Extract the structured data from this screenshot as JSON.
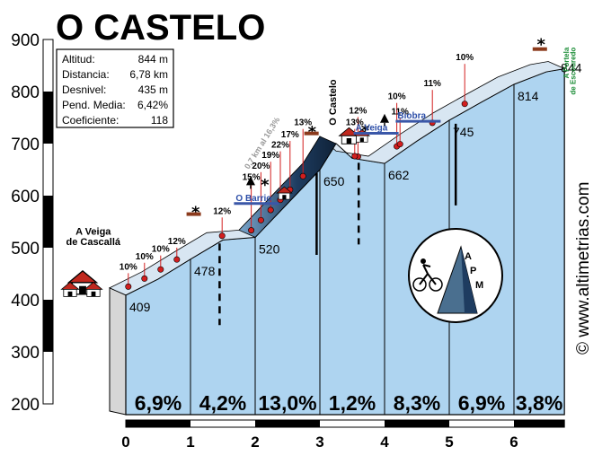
{
  "chart_data": {
    "type": "area",
    "title": "O CASTELO",
    "y_ticks": [
      200,
      300,
      400,
      500,
      600,
      700,
      800,
      900
    ],
    "x_ticks": [
      0,
      1,
      2,
      3,
      4,
      5,
      6
    ],
    "ylim": [
      200,
      900
    ],
    "xlim": [
      0,
      6.78
    ],
    "profile": [
      {
        "x": 0,
        "y": 409
      },
      {
        "x": 0.5,
        "y": 440
      },
      {
        "x": 1.0,
        "y": 478
      },
      {
        "x": 1.5,
        "y": 515
      },
      {
        "x": 2.0,
        "y": 520
      },
      {
        "x": 2.5,
        "y": 585
      },
      {
        "x": 3.0,
        "y": 650
      },
      {
        "x": 3.25,
        "y": 700
      },
      {
        "x": 3.5,
        "y": 672
      },
      {
        "x": 4.0,
        "y": 662
      },
      {
        "x": 4.5,
        "y": 705
      },
      {
        "x": 5.0,
        "y": 745
      },
      {
        "x": 5.5,
        "y": 780
      },
      {
        "x": 6.0,
        "y": 814
      },
      {
        "x": 6.5,
        "y": 838
      },
      {
        "x": 6.78,
        "y": 844
      }
    ],
    "elevation_labels": [
      {
        "x": 0,
        "y": 409,
        "text": "409"
      },
      {
        "x": 1,
        "y": 478,
        "text": "478"
      },
      {
        "x": 2,
        "y": 520,
        "text": "520"
      },
      {
        "x": 3,
        "y": 650,
        "text": "650"
      },
      {
        "x": 4,
        "y": 662,
        "text": "662"
      },
      {
        "x": 5,
        "y": 745,
        "text": "745"
      },
      {
        "x": 6,
        "y": 814,
        "text": "814"
      },
      {
        "x": 6.78,
        "y": 844,
        "text": "844"
      }
    ],
    "segment_gradients": [
      "6,9%",
      "4,2%",
      "13,0%",
      "1,2%",
      "8,3%",
      "6,9%",
      "3,8%"
    ],
    "ramp_labels": [
      {
        "x": 0.15,
        "y": 458,
        "text": "10%"
      },
      {
        "x": 0.4,
        "y": 478,
        "text": "10%"
      },
      {
        "x": 0.65,
        "y": 492,
        "text": "10%"
      },
      {
        "x": 0.9,
        "y": 507,
        "text": "12%"
      },
      {
        "x": 1.6,
        "y": 565,
        "text": "12%"
      },
      {
        "x": 2.05,
        "y": 630,
        "text": "15%"
      },
      {
        "x": 2.2,
        "y": 652,
        "text": "20%"
      },
      {
        "x": 2.35,
        "y": 672,
        "text": "19%"
      },
      {
        "x": 2.5,
        "y": 692,
        "text": "22%"
      },
      {
        "x": 2.65,
        "y": 712,
        "text": "17%"
      },
      {
        "x": 2.85,
        "y": 735,
        "text": "13%"
      },
      {
        "x": 3.7,
        "y": 758,
        "text": "12%"
      },
      {
        "x": 3.65,
        "y": 735,
        "text": "13%"
      },
      {
        "x": 4.3,
        "y": 785,
        "text": "10%"
      },
      {
        "x": 4.35,
        "y": 756,
        "text": "11%"
      },
      {
        "x": 4.85,
        "y": 810,
        "text": "11%"
      },
      {
        "x": 5.35,
        "y": 860,
        "text": "10%"
      }
    ],
    "places": [
      {
        "text": "A Veiga",
        "x": 0.08,
        "y": 525
      },
      {
        "text": "de Cascallá",
        "x": 0.08,
        "y": 505
      }
    ],
    "road_labels": [
      {
        "text": "O Barrio",
        "x": 1.7,
        "y": 590
      },
      {
        "text": "A Veiga",
        "x": 3.55,
        "y": 725
      },
      {
        "text": "Biobra",
        "x": 4.2,
        "y": 748
      }
    ],
    "vertical_labels": [
      {
        "text": "O Castelo",
        "x": 3.25,
        "y": 735
      },
      {
        "text": "0,7 km al 16,3%",
        "x": 1.9,
        "y": 650
      },
      {
        "text": "A Portela",
        "x": 6.85,
        "y": 885
      },
      {
        "text": "de Escouredo",
        "x": 6.95,
        "y": 885
      }
    ],
    "stats": [
      {
        "label": "Altitud:",
        "value": "844 m"
      },
      {
        "label": "Distancia:",
        "value": "6,78 km"
      },
      {
        "label": "Desnivel:",
        "value": "435 m"
      },
      {
        "label": "Pend. Media:",
        "value": "6,42%"
      },
      {
        "label": "Coeficiente:",
        "value": "118"
      }
    ],
    "logo": "APM",
    "copyright": "© www.altimetrias.com",
    "colors": {
      "fill": "#aed4f0",
      "steep": "#1e3c60",
      "dots": "#d21e1e",
      "road": "#3a57a8"
    }
  }
}
